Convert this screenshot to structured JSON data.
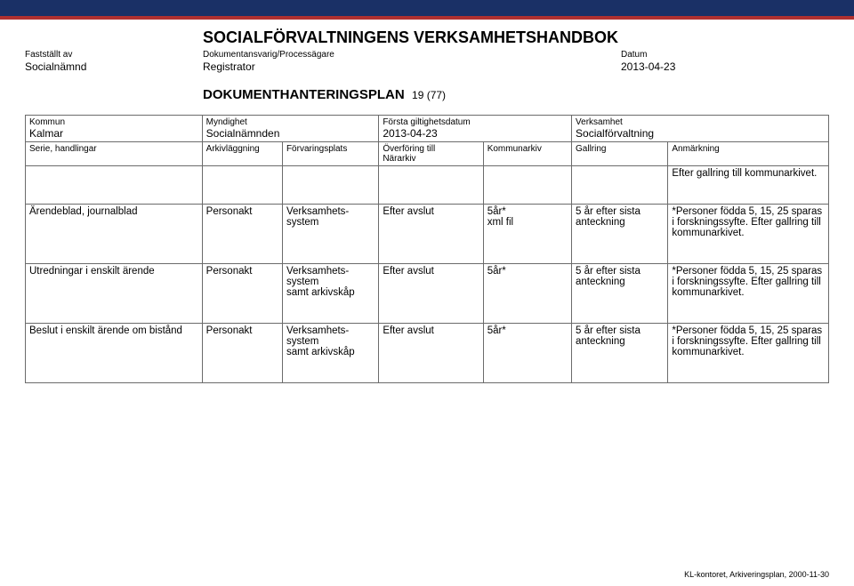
{
  "header": {
    "main_title": "SOCIALFÖRVALTNINGENS VERKSAMHETSHANDBOK",
    "col1_label": "Fastställt av",
    "col1_val": "Socialnämnd",
    "col2_label": "Dokumentansvarig/Processägare",
    "col2_val": "Registrator",
    "col3_label": "Datum",
    "col3_val": "2013-04-23",
    "plan_title": "DOKUMENTHANTERINGSPLAN",
    "page_of": "19 (77)"
  },
  "thead": {
    "c0_label": "Kommun",
    "c0_val": "Kalmar",
    "c1_label": "Serie, handlingar",
    "c2_label": "Myndighet",
    "c2_val": "Socialnämnden",
    "c3_label": "Arkivläggning",
    "c4_label": "Förvaringsplats",
    "c5_label": "Första giltighetsdatum",
    "c5_val": "2013-04-23",
    "c6_top": "Överföring till",
    "c6_label": "Närarkiv",
    "c7_label": "Kommunarkiv",
    "c8_label": "Verksamhet",
    "c8_val": "Socialförvaltning",
    "c9_label": "Gallring",
    "c10_label": "Anmärkning"
  },
  "rows": [
    {
      "a": "",
      "b": "",
      "c": "",
      "d": "",
      "e": "",
      "f": "",
      "g": "Efter gallring till kommunarkivet."
    },
    {
      "a": "Ärendeblad, journalblad",
      "b": "Personakt",
      "c": "Verksamhets-\nsystem",
      "d": "Efter avslut",
      "e": "5år*\nxml fil",
      "f": "5 år efter sista anteckning",
      "g": "*Personer födda 5, 15, 25 sparas i forskningssyfte. Efter gallring till kommunarkivet."
    },
    {
      "a": "Utredningar i enskilt ärende",
      "b": "Personakt",
      "c": "Verksamhets-\nsystem\nsamt arkivskåp",
      "d": "Efter avslut",
      "e": "5år*",
      "f": "5 år efter sista anteckning",
      "g": "*Personer födda 5, 15, 25 sparas i forskningssyfte. Efter gallring till kommunarkivet."
    },
    {
      "a": "Beslut i enskilt ärende om bistånd",
      "b": "Personakt",
      "c": "Verksamhets-\nsystem\nsamt arkivskåp",
      "d": "Efter avslut",
      "e": "5år*",
      "f": "5 år efter sista anteckning",
      "g": "*Personer födda 5, 15, 25 sparas i forskningssyfte. Efter gallring till kommunarkivet."
    }
  ],
  "footer": "KL-kontoret, Arkiveringsplan, 2000-11-30"
}
